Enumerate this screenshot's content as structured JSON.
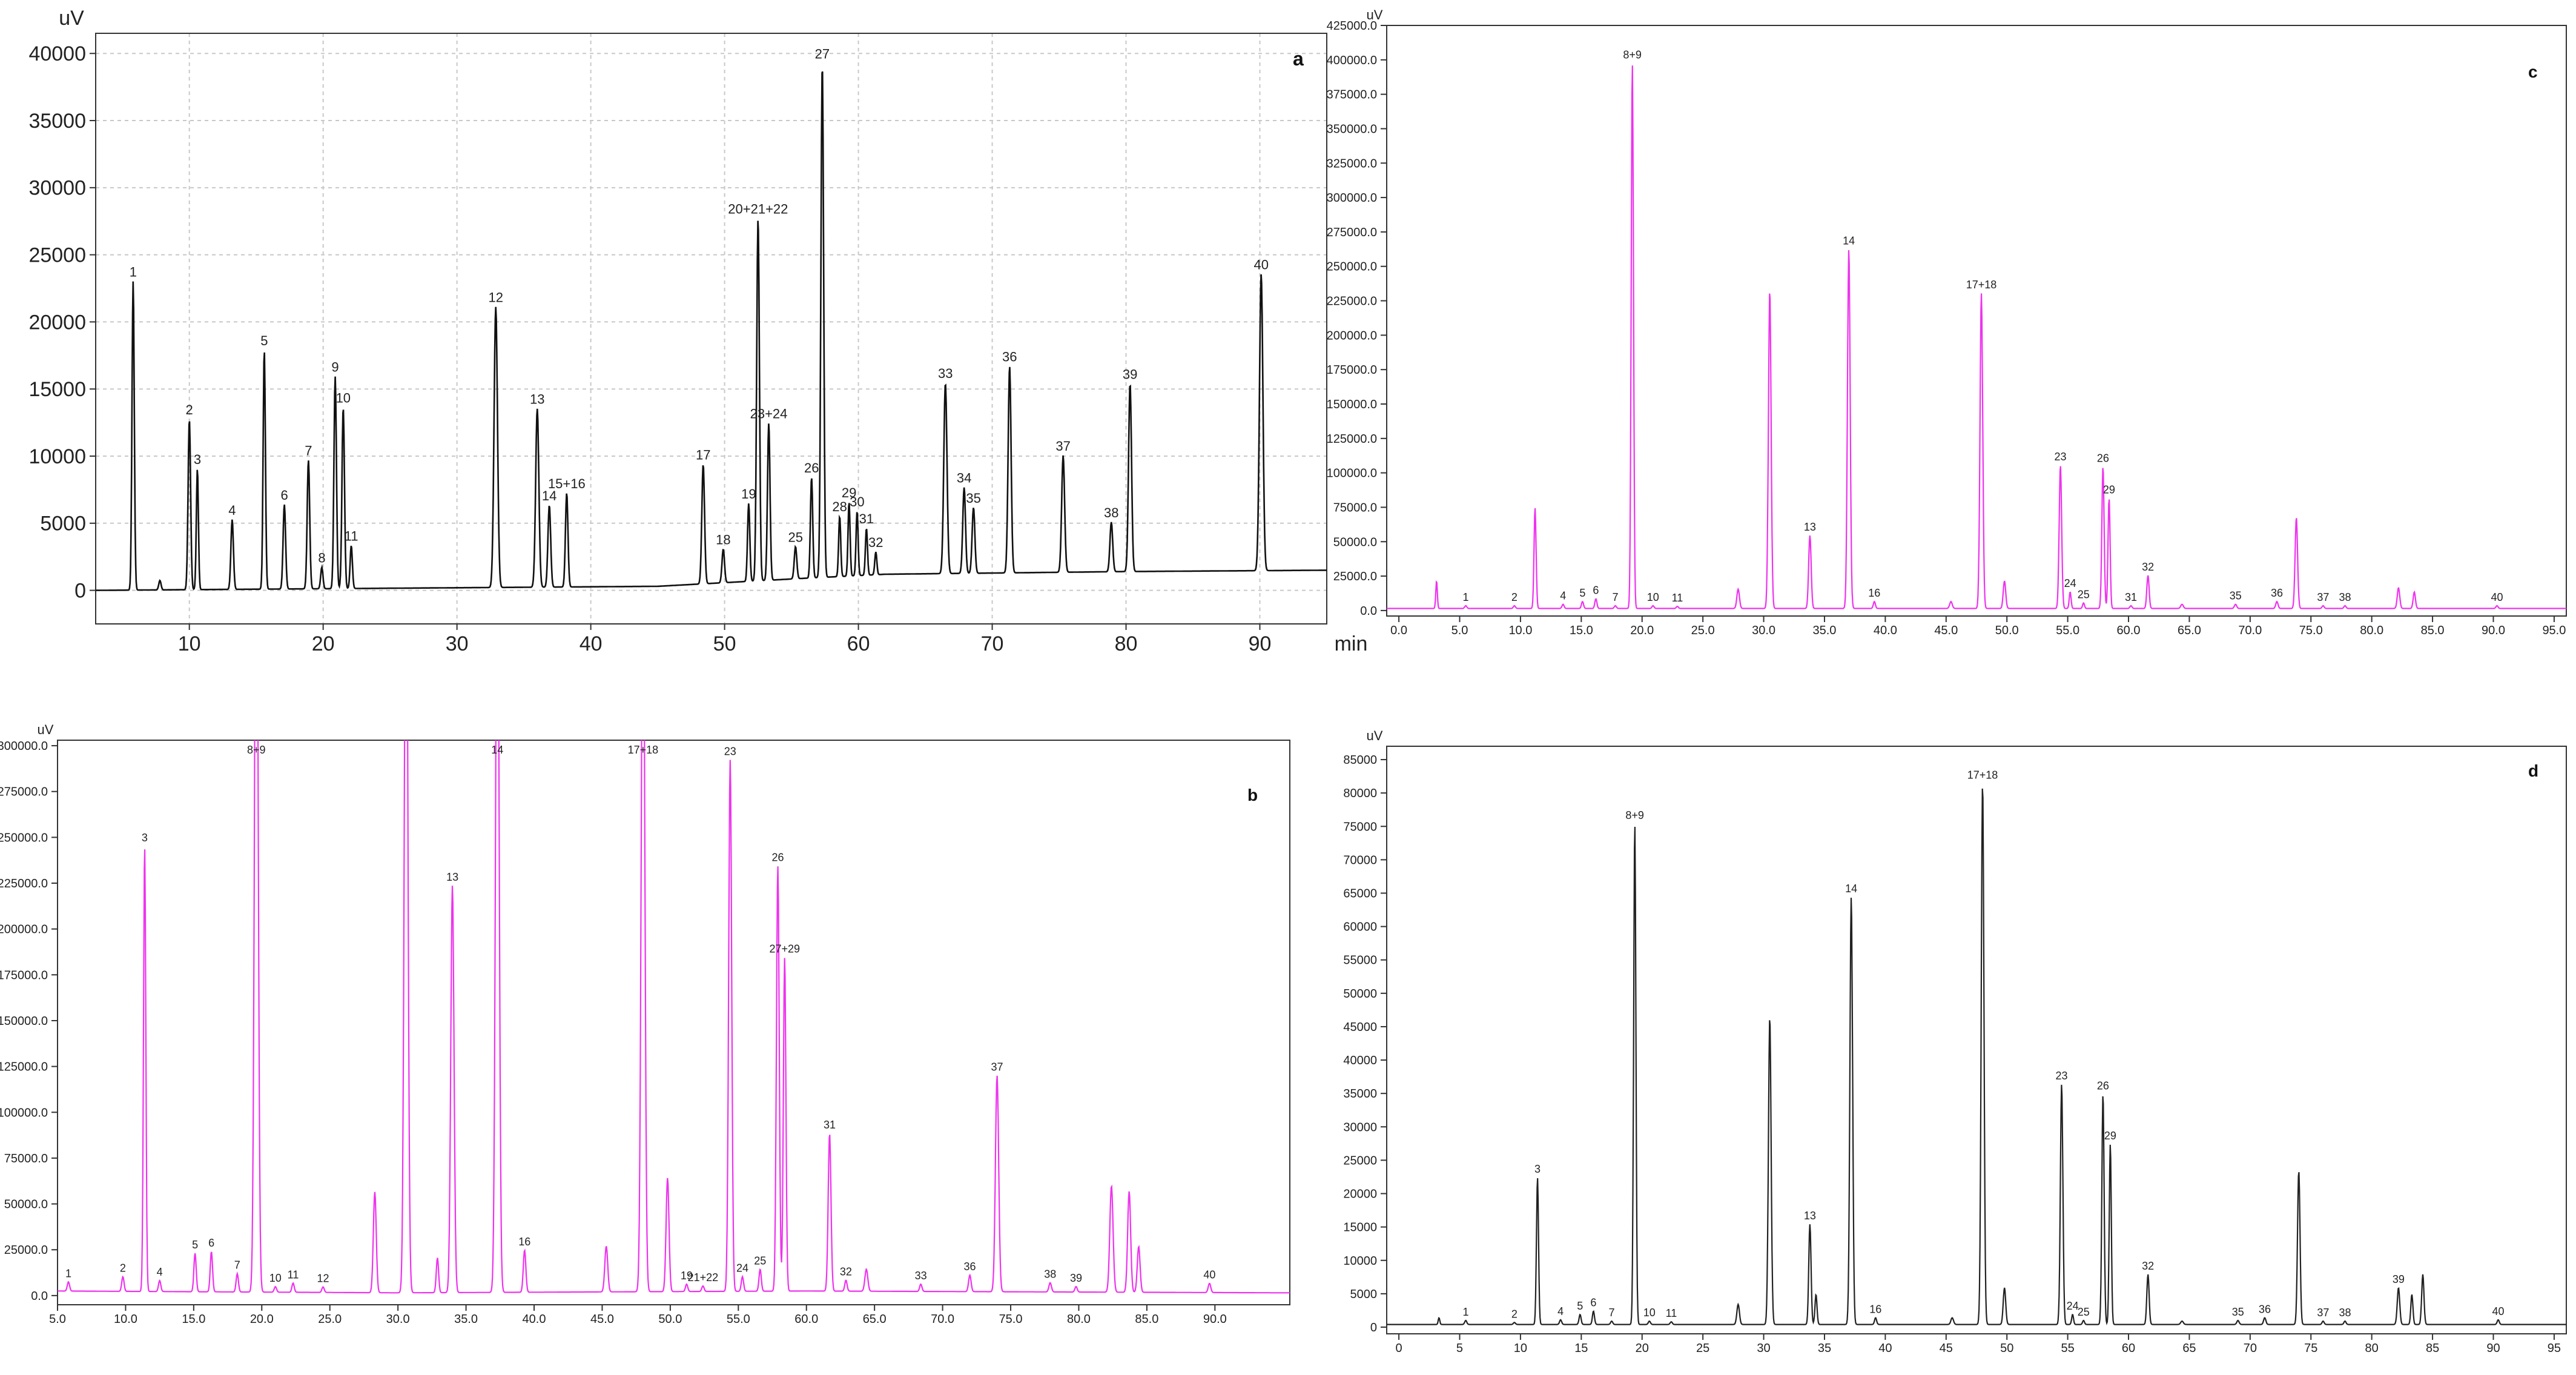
{
  "chart_data": [
    {
      "panel": "a",
      "type": "line",
      "color": "#111111",
      "ylabel": "uV",
      "xlabel": "min",
      "xlim": [
        3,
        95
      ],
      "ylim": [
        -2500,
        41500
      ],
      "xticks": [
        10,
        20,
        30,
        40,
        50,
        60,
        70,
        80,
        90
      ],
      "yticks": [
        0,
        5000,
        10000,
        15000,
        20000,
        25000,
        30000,
        35000,
        40000
      ],
      "tick_decimals": 0,
      "grid": true,
      "baseline": [
        [
          3,
          0
        ],
        [
          45,
          300
        ],
        [
          56,
          900
        ],
        [
          62,
          1200
        ],
        [
          80,
          1400
        ],
        [
          95,
          1500
        ]
      ],
      "peaks": [
        {
          "label": "1",
          "x": 5.8,
          "y": 23000,
          "w": 0.2
        },
        {
          "x": 7.8,
          "y": 700,
          "w": 0.2
        },
        {
          "label": "2",
          "x": 10.0,
          "y": 12700,
          "w": 0.22
        },
        {
          "label": "3",
          "x": 10.6,
          "y": 9000,
          "w": 0.18
        },
        {
          "label": "4",
          "x": 13.2,
          "y": 5200,
          "w": 0.22
        },
        {
          "label": "5",
          "x": 15.6,
          "y": 17800,
          "w": 0.2
        },
        {
          "label": "6",
          "x": 17.1,
          "y": 6300,
          "w": 0.22
        },
        {
          "label": "7",
          "x": 18.9,
          "y": 9600,
          "w": 0.22
        },
        {
          "label": "8",
          "x": 19.9,
          "y": 1600,
          "w": 0.2
        },
        {
          "label": "9",
          "x": 20.9,
          "y": 15800,
          "w": 0.22
        },
        {
          "label": "10",
          "x": 21.5,
          "y": 13500,
          "w": 0.22
        },
        {
          "label": "11",
          "x": 22.1,
          "y": 3200,
          "w": 0.2
        },
        {
          "label": "12",
          "x": 32.9,
          "y": 20900,
          "w": 0.3
        },
        {
          "label": "13",
          "x": 36.0,
          "y": 13300,
          "w": 0.28
        },
        {
          "label": "14",
          "x": 36.9,
          "y": 6100,
          "w": 0.24
        },
        {
          "label": "15+16",
          "x": 38.2,
          "y": 7000,
          "w": 0.22
        },
        {
          "label": "17",
          "x": 48.4,
          "y": 8900,
          "w": 0.24
        },
        {
          "label": "18",
          "x": 49.9,
          "y": 2500,
          "w": 0.22
        },
        {
          "label": "19",
          "x": 51.8,
          "y": 5800,
          "w": 0.2
        },
        {
          "label": "20+21+22",
          "x": 52.5,
          "y": 27000,
          "w": 0.24
        },
        {
          "label": "23+24",
          "x": 53.3,
          "y": 11700,
          "w": 0.22
        },
        {
          "label": "25",
          "x": 55.3,
          "y": 2400,
          "w": 0.22
        },
        {
          "label": "26",
          "x": 56.5,
          "y": 7500,
          "w": 0.2
        },
        {
          "label": "27",
          "x": 57.3,
          "y": 38300,
          "w": 0.24
        },
        {
          "label": "28",
          "x": 58.6,
          "y": 4500,
          "w": 0.18
        },
        {
          "label": "29",
          "x": 59.3,
          "y": 5500,
          "w": 0.18
        },
        {
          "label": "30",
          "x": 59.9,
          "y": 4800,
          "w": 0.18
        },
        {
          "label": "31",
          "x": 60.6,
          "y": 3500,
          "w": 0.18
        },
        {
          "label": "32",
          "x": 61.3,
          "y": 1700,
          "w": 0.18
        },
        {
          "label": "33",
          "x": 66.5,
          "y": 14200,
          "w": 0.28
        },
        {
          "label": "34",
          "x": 67.9,
          "y": 6400,
          "w": 0.24
        },
        {
          "label": "35",
          "x": 68.6,
          "y": 4900,
          "w": 0.24
        },
        {
          "label": "36",
          "x": 71.3,
          "y": 15400,
          "w": 0.26
        },
        {
          "label": "37",
          "x": 75.3,
          "y": 8700,
          "w": 0.26
        },
        {
          "label": "38",
          "x": 78.9,
          "y": 3700,
          "w": 0.24
        },
        {
          "label": "39",
          "x": 80.3,
          "y": 14000,
          "w": 0.26
        },
        {
          "label": "40",
          "x": 90.1,
          "y": 22100,
          "w": 0.3
        }
      ]
    },
    {
      "panel": "b",
      "type": "line",
      "color": "#ee33ee",
      "ylabel": "uV",
      "xlim": [
        5,
        95.5
      ],
      "ylim": [
        -5000,
        303000
      ],
      "xticks": [
        5,
        10,
        15,
        20,
        25,
        30,
        35,
        40,
        45,
        50,
        55,
        60,
        65,
        70,
        75,
        80,
        85,
        90
      ],
      "yticks": [
        0,
        25000,
        50000,
        75000,
        100000,
        125000,
        150000,
        175000,
        200000,
        225000,
        250000,
        275000,
        300000
      ],
      "tick_decimals": 1,
      "grid": false,
      "baseline": [
        [
          5,
          2500
        ],
        [
          30,
          1500
        ],
        [
          60,
          2500
        ],
        [
          95,
          1500
        ]
      ],
      "peaks": [
        {
          "label": "1",
          "x": 5.8,
          "y": 5000,
          "w": 0.2
        },
        {
          "label": "2",
          "x": 9.8,
          "y": 8000,
          "w": 0.2
        },
        {
          "label": "3",
          "x": 11.4,
          "y": 243000,
          "w": 0.2
        },
        {
          "label": "4",
          "x": 12.5,
          "y": 6000,
          "w": 0.2
        },
        {
          "label": "5",
          "x": 15.1,
          "y": 21000,
          "w": 0.2
        },
        {
          "label": "6",
          "x": 16.3,
          "y": 22000,
          "w": 0.2
        },
        {
          "label": "7",
          "x": 18.2,
          "y": 10000,
          "w": 0.2
        },
        {
          "label": "8+9",
          "x": 19.6,
          "y": 480000,
          "w": 0.3
        },
        {
          "label": "10",
          "x": 21.0,
          "y": 3000,
          "w": 0.2
        },
        {
          "label": "11",
          "x": 22.3,
          "y": 5000,
          "w": 0.2
        },
        {
          "label": "12",
          "x": 24.5,
          "y": 3000,
          "w": 0.2
        },
        {
          "x": 28.3,
          "y": 55000,
          "w": 0.25
        },
        {
          "x": 30.6,
          "y": 450000,
          "w": 0.3
        },
        {
          "x": 32.9,
          "y": 19000,
          "w": 0.2
        },
        {
          "label": "13",
          "x": 34.0,
          "y": 222000,
          "w": 0.28
        },
        {
          "label": "14",
          "x": 37.3,
          "y": 440000,
          "w": 0.3
        },
        {
          "label": "16",
          "x": 39.3,
          "y": 23000,
          "w": 0.22
        },
        {
          "x": 45.3,
          "y": 25000,
          "w": 0.25
        },
        {
          "label": "17+18",
          "x": 48.0,
          "y": 420000,
          "w": 0.3
        },
        {
          "x": 49.8,
          "y": 62000,
          "w": 0.25
        },
        {
          "label": "19",
          "x": 51.2,
          "y": 4000,
          "w": 0.2
        },
        {
          "label": "21+22",
          "x": 52.4,
          "y": 3000,
          "w": 0.2
        },
        {
          "label": "23",
          "x": 54.4,
          "y": 290000,
          "w": 0.26
        },
        {
          "label": "24",
          "x": 55.3,
          "y": 8000,
          "w": 0.2
        },
        {
          "label": "25",
          "x": 56.6,
          "y": 12000,
          "w": 0.2
        },
        {
          "label": "26",
          "x": 57.9,
          "y": 232000,
          "w": 0.24
        },
        {
          "label": "27+29",
          "x": 58.4,
          "y": 182000,
          "w": 0.22
        },
        {
          "label": "31",
          "x": 61.7,
          "y": 86000,
          "w": 0.24
        },
        {
          "label": "32",
          "x": 62.9,
          "y": 6000,
          "w": 0.2
        },
        {
          "x": 64.4,
          "y": 12000,
          "w": 0.25
        },
        {
          "label": "33",
          "x": 68.4,
          "y": 4000,
          "w": 0.2
        },
        {
          "label": "36",
          "x": 72.0,
          "y": 9000,
          "w": 0.22
        },
        {
          "label": "37",
          "x": 74.0,
          "y": 118000,
          "w": 0.28
        },
        {
          "label": "38",
          "x": 77.9,
          "y": 5000,
          "w": 0.22
        },
        {
          "label": "39",
          "x": 79.8,
          "y": 3000,
          "w": 0.2
        },
        {
          "x": 82.4,
          "y": 58000,
          "w": 0.28
        },
        {
          "x": 83.7,
          "y": 55000,
          "w": 0.26
        },
        {
          "x": 84.4,
          "y": 25000,
          "w": 0.24
        },
        {
          "label": "40",
          "x": 89.6,
          "y": 5000,
          "w": 0.22
        }
      ]
    },
    {
      "panel": "c",
      "type": "line",
      "color": "#ee33ee",
      "ylabel": "uV",
      "xlim": [
        -1,
        96
      ],
      "ylim": [
        -4000,
        425000
      ],
      "xticks": [
        0,
        5,
        10,
        15,
        20,
        25,
        30,
        35,
        40,
        45,
        50,
        55,
        60,
        65,
        70,
        75,
        80,
        85,
        90,
        95
      ],
      "yticks": [
        0,
        25000,
        50000,
        75000,
        100000,
        125000,
        150000,
        175000,
        200000,
        225000,
        250000,
        275000,
        300000,
        325000,
        350000,
        375000,
        400000,
        425000
      ],
      "tick_decimals": 1,
      "grid": false,
      "baseline": [
        [
          -1,
          1500
        ],
        [
          95,
          1500
        ]
      ],
      "peaks": [
        {
          "x": 3.1,
          "y": 20000,
          "w": 0.15
        },
        {
          "label": "1",
          "x": 5.5,
          "y": 2000,
          "w": 0.2
        },
        {
          "label": "2",
          "x": 9.5,
          "y": 2000,
          "w": 0.2
        },
        {
          "x": 11.2,
          "y": 73000,
          "w": 0.2
        },
        {
          "label": "4",
          "x": 13.5,
          "y": 3000,
          "w": 0.2
        },
        {
          "label": "5",
          "x": 15.1,
          "y": 5000,
          "w": 0.2
        },
        {
          "label": "6",
          "x": 16.2,
          "y": 7000,
          "w": 0.2
        },
        {
          "label": "7",
          "x": 17.8,
          "y": 2000,
          "w": 0.2
        },
        {
          "label": "8+9",
          "x": 19.2,
          "y": 396000,
          "w": 0.22
        },
        {
          "label": "10",
          "x": 20.9,
          "y": 2000,
          "w": 0.2
        },
        {
          "label": "11",
          "x": 22.9,
          "y": 1500,
          "w": 0.2
        },
        {
          "x": 27.9,
          "y": 14000,
          "w": 0.25
        },
        {
          "x": 30.5,
          "y": 231000,
          "w": 0.26
        },
        {
          "label": "13",
          "x": 33.8,
          "y": 53000,
          "w": 0.24
        },
        {
          "label": "14",
          "x": 37.0,
          "y": 261000,
          "w": 0.26
        },
        {
          "label": "16",
          "x": 39.1,
          "y": 5000,
          "w": 0.2
        },
        {
          "x": 45.4,
          "y": 5000,
          "w": 0.25
        },
        {
          "label": "17+18",
          "x": 47.9,
          "y": 229000,
          "w": 0.26
        },
        {
          "x": 49.8,
          "y": 20000,
          "w": 0.24
        },
        {
          "label": "23",
          "x": 54.4,
          "y": 104000,
          "w": 0.24
        },
        {
          "label": "24",
          "x": 55.2,
          "y": 12000,
          "w": 0.18
        },
        {
          "label": "25",
          "x": 56.3,
          "y": 4000,
          "w": 0.18
        },
        {
          "label": "26",
          "x": 57.9,
          "y": 103000,
          "w": 0.22
        },
        {
          "label": "29",
          "x": 58.4,
          "y": 80000,
          "w": 0.2
        },
        {
          "label": "31",
          "x": 60.2,
          "y": 2000,
          "w": 0.2
        },
        {
          "label": "32",
          "x": 61.6,
          "y": 24000,
          "w": 0.22
        },
        {
          "x": 64.4,
          "y": 3000,
          "w": 0.25
        },
        {
          "label": "35",
          "x": 68.8,
          "y": 3000,
          "w": 0.22
        },
        {
          "label": "36",
          "x": 72.2,
          "y": 5000,
          "w": 0.22
        },
        {
          "x": 73.8,
          "y": 66000,
          "w": 0.24
        },
        {
          "label": "37",
          "x": 76.0,
          "y": 2000,
          "w": 0.2
        },
        {
          "label": "38",
          "x": 77.8,
          "y": 2000,
          "w": 0.2
        },
        {
          "x": 82.2,
          "y": 15000,
          "w": 0.24
        },
        {
          "x": 83.5,
          "y": 12000,
          "w": 0.22
        },
        {
          "label": "40",
          "x": 90.3,
          "y": 2000,
          "w": 0.2
        }
      ]
    },
    {
      "panel": "d",
      "type": "line",
      "color": "#222222",
      "ylabel": "uV",
      "xlim": [
        -1,
        96
      ],
      "ylim": [
        -1000,
        87000
      ],
      "xticks": [
        0,
        5,
        10,
        15,
        20,
        25,
        30,
        35,
        40,
        45,
        50,
        55,
        60,
        65,
        70,
        75,
        80,
        85,
        90,
        95
      ],
      "yticks": [
        0,
        5000,
        10000,
        15000,
        20000,
        25000,
        30000,
        35000,
        40000,
        45000,
        50000,
        55000,
        60000,
        65000,
        70000,
        75000,
        80000,
        85000
      ],
      "tick_decimals": 0,
      "grid": false,
      "baseline": [
        [
          -1,
          400
        ],
        [
          95,
          400
        ]
      ],
      "peaks": [
        {
          "x": 3.3,
          "y": 1000,
          "w": 0.15
        },
        {
          "label": "1",
          "x": 5.5,
          "y": 600,
          "w": 0.2
        },
        {
          "label": "2",
          "x": 9.5,
          "y": 300,
          "w": 0.2
        },
        {
          "label": "3",
          "x": 11.4,
          "y": 22000,
          "w": 0.2
        },
        {
          "label": "4",
          "x": 13.3,
          "y": 700,
          "w": 0.2
        },
        {
          "label": "5",
          "x": 14.9,
          "y": 1500,
          "w": 0.2
        },
        {
          "label": "6",
          "x": 16.0,
          "y": 2000,
          "w": 0.2
        },
        {
          "label": "7",
          "x": 17.5,
          "y": 500,
          "w": 0.2
        },
        {
          "label": "8+9",
          "x": 19.4,
          "y": 75000,
          "w": 0.22
        },
        {
          "label": "10",
          "x": 20.6,
          "y": 500,
          "w": 0.2
        },
        {
          "label": "11",
          "x": 22.4,
          "y": 400,
          "w": 0.2
        },
        {
          "x": 27.9,
          "y": 3000,
          "w": 0.25
        },
        {
          "x": 30.5,
          "y": 46000,
          "w": 0.26
        },
        {
          "label": "13",
          "x": 33.8,
          "y": 15000,
          "w": 0.22
        },
        {
          "x": 34.3,
          "y": 4500,
          "w": 0.2
        },
        {
          "label": "14",
          "x": 37.2,
          "y": 64000,
          "w": 0.26
        },
        {
          "label": "16",
          "x": 39.2,
          "y": 1000,
          "w": 0.2
        },
        {
          "x": 45.5,
          "y": 1000,
          "w": 0.25
        },
        {
          "label": "17+18",
          "x": 48.0,
          "y": 81000,
          "w": 0.26
        },
        {
          "x": 49.8,
          "y": 5500,
          "w": 0.24
        },
        {
          "label": "23",
          "x": 54.5,
          "y": 36000,
          "w": 0.24
        },
        {
          "label": "24",
          "x": 55.4,
          "y": 1500,
          "w": 0.18
        },
        {
          "label": "25",
          "x": 56.3,
          "y": 600,
          "w": 0.18
        },
        {
          "label": "26",
          "x": 57.9,
          "y": 34500,
          "w": 0.22
        },
        {
          "label": "29",
          "x": 58.5,
          "y": 27000,
          "w": 0.2
        },
        {
          "label": "32",
          "x": 61.6,
          "y": 7500,
          "w": 0.22
        },
        {
          "x": 64.4,
          "y": 500,
          "w": 0.25
        },
        {
          "label": "35",
          "x": 69.0,
          "y": 600,
          "w": 0.22
        },
        {
          "label": "36",
          "x": 71.2,
          "y": 1000,
          "w": 0.22
        },
        {
          "x": 74.0,
          "y": 23000,
          "w": 0.24
        },
        {
          "label": "37",
          "x": 76.0,
          "y": 500,
          "w": 0.2
        },
        {
          "label": "38",
          "x": 77.8,
          "y": 500,
          "w": 0.2
        },
        {
          "label": "39",
          "x": 82.2,
          "y": 5500,
          "w": 0.24
        },
        {
          "x": 83.3,
          "y": 4500,
          "w": 0.2
        },
        {
          "x": 84.2,
          "y": 7500,
          "w": 0.22
        },
        {
          "label": "40",
          "x": 90.4,
          "y": 700,
          "w": 0.2
        }
      ]
    }
  ]
}
